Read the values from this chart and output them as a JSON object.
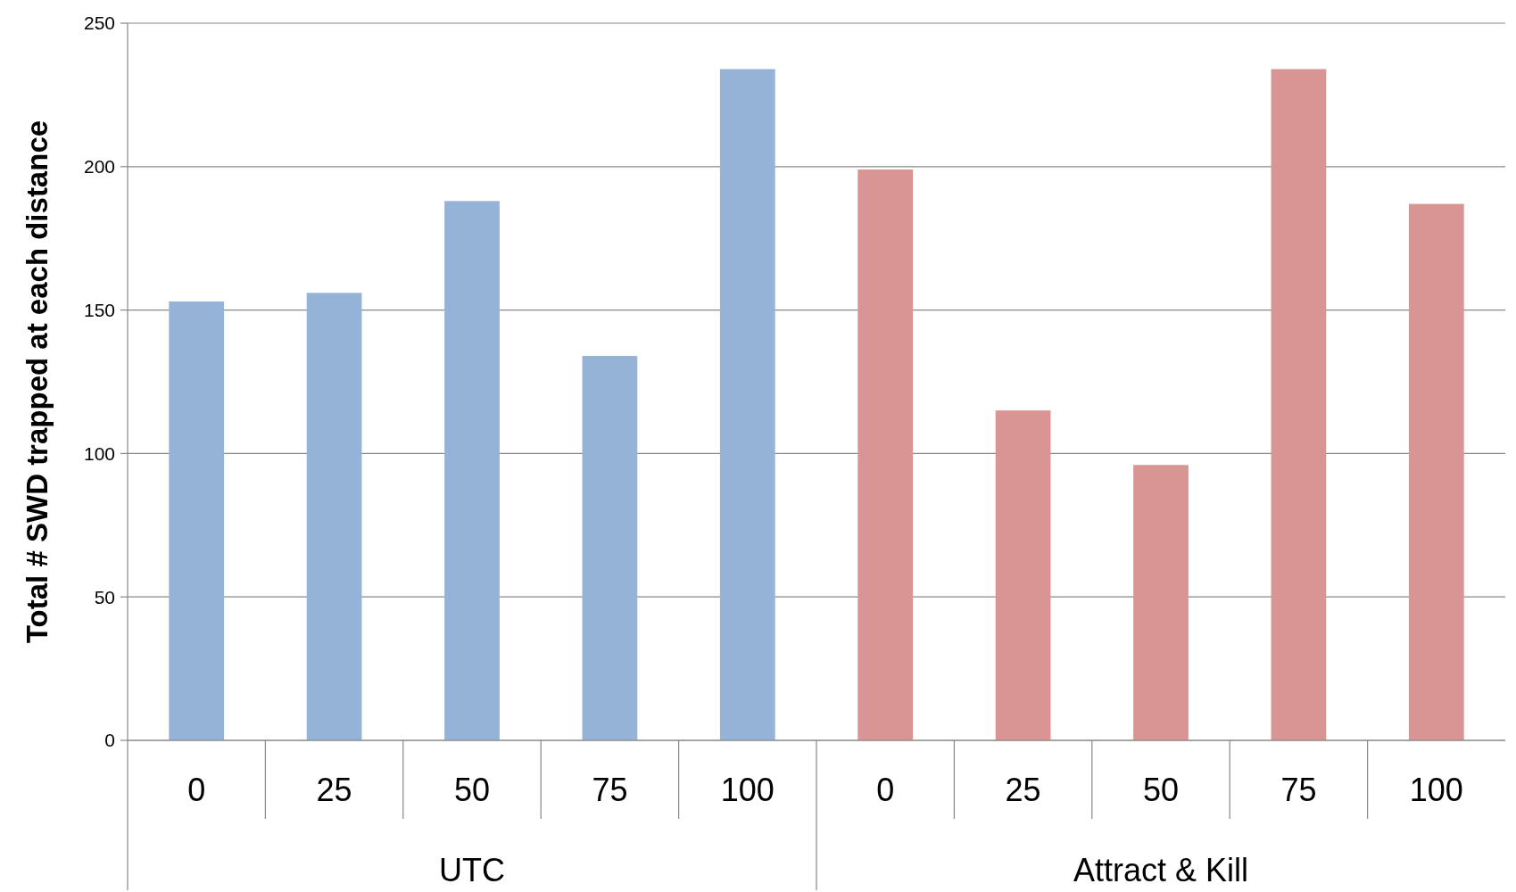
{
  "chart_data": {
    "type": "bar",
    "ylabel": "Total # SWD trapped at each distance",
    "categories": [
      "0",
      "25",
      "50",
      "75",
      "100",
      "0",
      "25",
      "50",
      "75",
      "100"
    ],
    "series": [
      {
        "color": "#95b3d7",
        "values": [
          153,
          156,
          188,
          134,
          234,
          null,
          null,
          null,
          null,
          null
        ]
      },
      {
        "color": "#d99594",
        "values": [
          null,
          null,
          null,
          null,
          null,
          199,
          115,
          96,
          234,
          187
        ]
      }
    ],
    "annotations": [
      "UTC",
      "Attract & Kill"
    ],
    "ylim": [
      0,
      250
    ],
    "yticks": [
      0,
      50,
      100,
      150,
      200,
      250
    ],
    "grid": "y"
  }
}
